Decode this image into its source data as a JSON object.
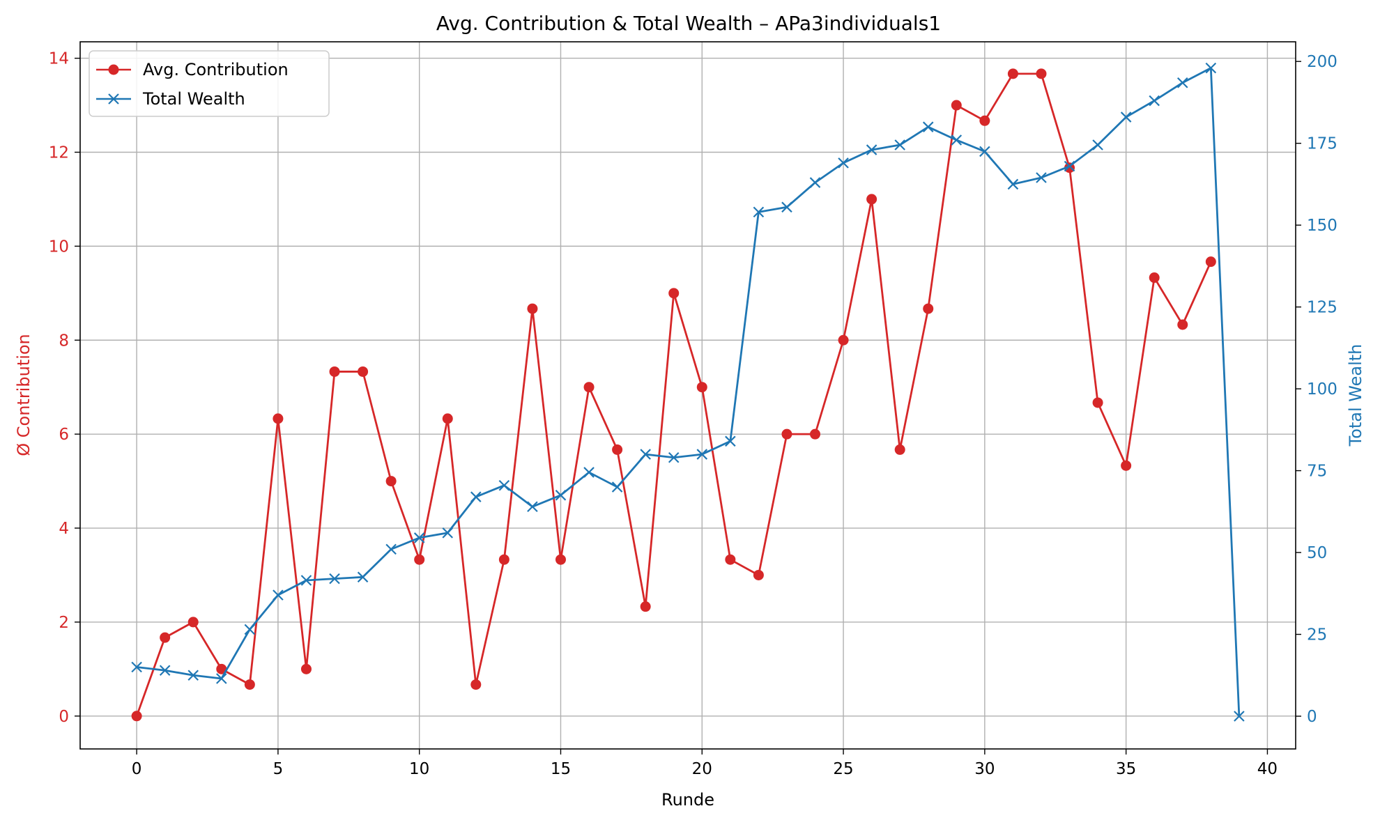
{
  "chart_data": {
    "type": "line",
    "title": "Avg. Contribution & Total Wealth – APa3individuals1",
    "xlabel": "Runde",
    "ylabel_left": "Ø Contribution",
    "ylabel_right": "Total Wealth",
    "xlim": [
      -2,
      41
    ],
    "xticks": [
      0,
      5,
      10,
      15,
      20,
      25,
      30,
      35,
      40
    ],
    "ylim_left": [
      -0.7,
      14.35
    ],
    "yticks_left": [
      0,
      2,
      4,
      6,
      8,
      10,
      12,
      14
    ],
    "ylim_right": [
      -10,
      206
    ],
    "yticks_right": [
      0,
      25,
      50,
      75,
      100,
      125,
      150,
      175,
      200
    ],
    "grid": true,
    "legend_position": "top-left",
    "colors": {
      "left_axis": "#d62728",
      "right_axis": "#1f77b4"
    },
    "series": [
      {
        "name": "Avg. Contribution",
        "axis": "left",
        "color": "#d62728",
        "marker": "circle",
        "x": [
          0,
          1,
          2,
          3,
          4,
          5,
          6,
          7,
          8,
          9,
          10,
          11,
          12,
          13,
          14,
          15,
          16,
          17,
          18,
          19,
          20,
          21,
          22,
          23,
          24,
          25,
          26,
          27,
          28,
          29,
          30,
          31,
          32,
          33,
          34,
          35,
          36,
          37,
          38
        ],
        "values": [
          0,
          1.67,
          2,
          1,
          0.67,
          6.33,
          1,
          7.33,
          7.33,
          5,
          3.33,
          6.33,
          0.67,
          3.33,
          8.67,
          3.33,
          7,
          5.67,
          2.33,
          9,
          7,
          3.33,
          3,
          6,
          6,
          8,
          11,
          5.67,
          8.67,
          13,
          12.67,
          13.67,
          13.67,
          11.67,
          6.67,
          5.33,
          9.33,
          8.33,
          9.67
        ]
      },
      {
        "name": "Total Wealth",
        "axis": "right",
        "color": "#1f77b4",
        "marker": "x",
        "x": [
          0,
          1,
          2,
          3,
          4,
          5,
          6,
          7,
          8,
          9,
          10,
          11,
          12,
          13,
          14,
          15,
          16,
          17,
          18,
          19,
          20,
          21,
          22,
          23,
          24,
          25,
          26,
          27,
          28,
          29,
          30,
          31,
          32,
          33,
          34,
          35,
          36,
          37,
          38,
          39
        ],
        "values": [
          15,
          14,
          12.5,
          11.5,
          26.5,
          37,
          41.5,
          42,
          42.5,
          51,
          54.5,
          56,
          67,
          70.5,
          64,
          67.5,
          74.5,
          70,
          80,
          79,
          80,
          84,
          154,
          155.5,
          163,
          169,
          173,
          174.5,
          180,
          176,
          172.5,
          162.5,
          164.5,
          168,
          174.5,
          183,
          188,
          193.5,
          198,
          0
        ]
      }
    ]
  }
}
